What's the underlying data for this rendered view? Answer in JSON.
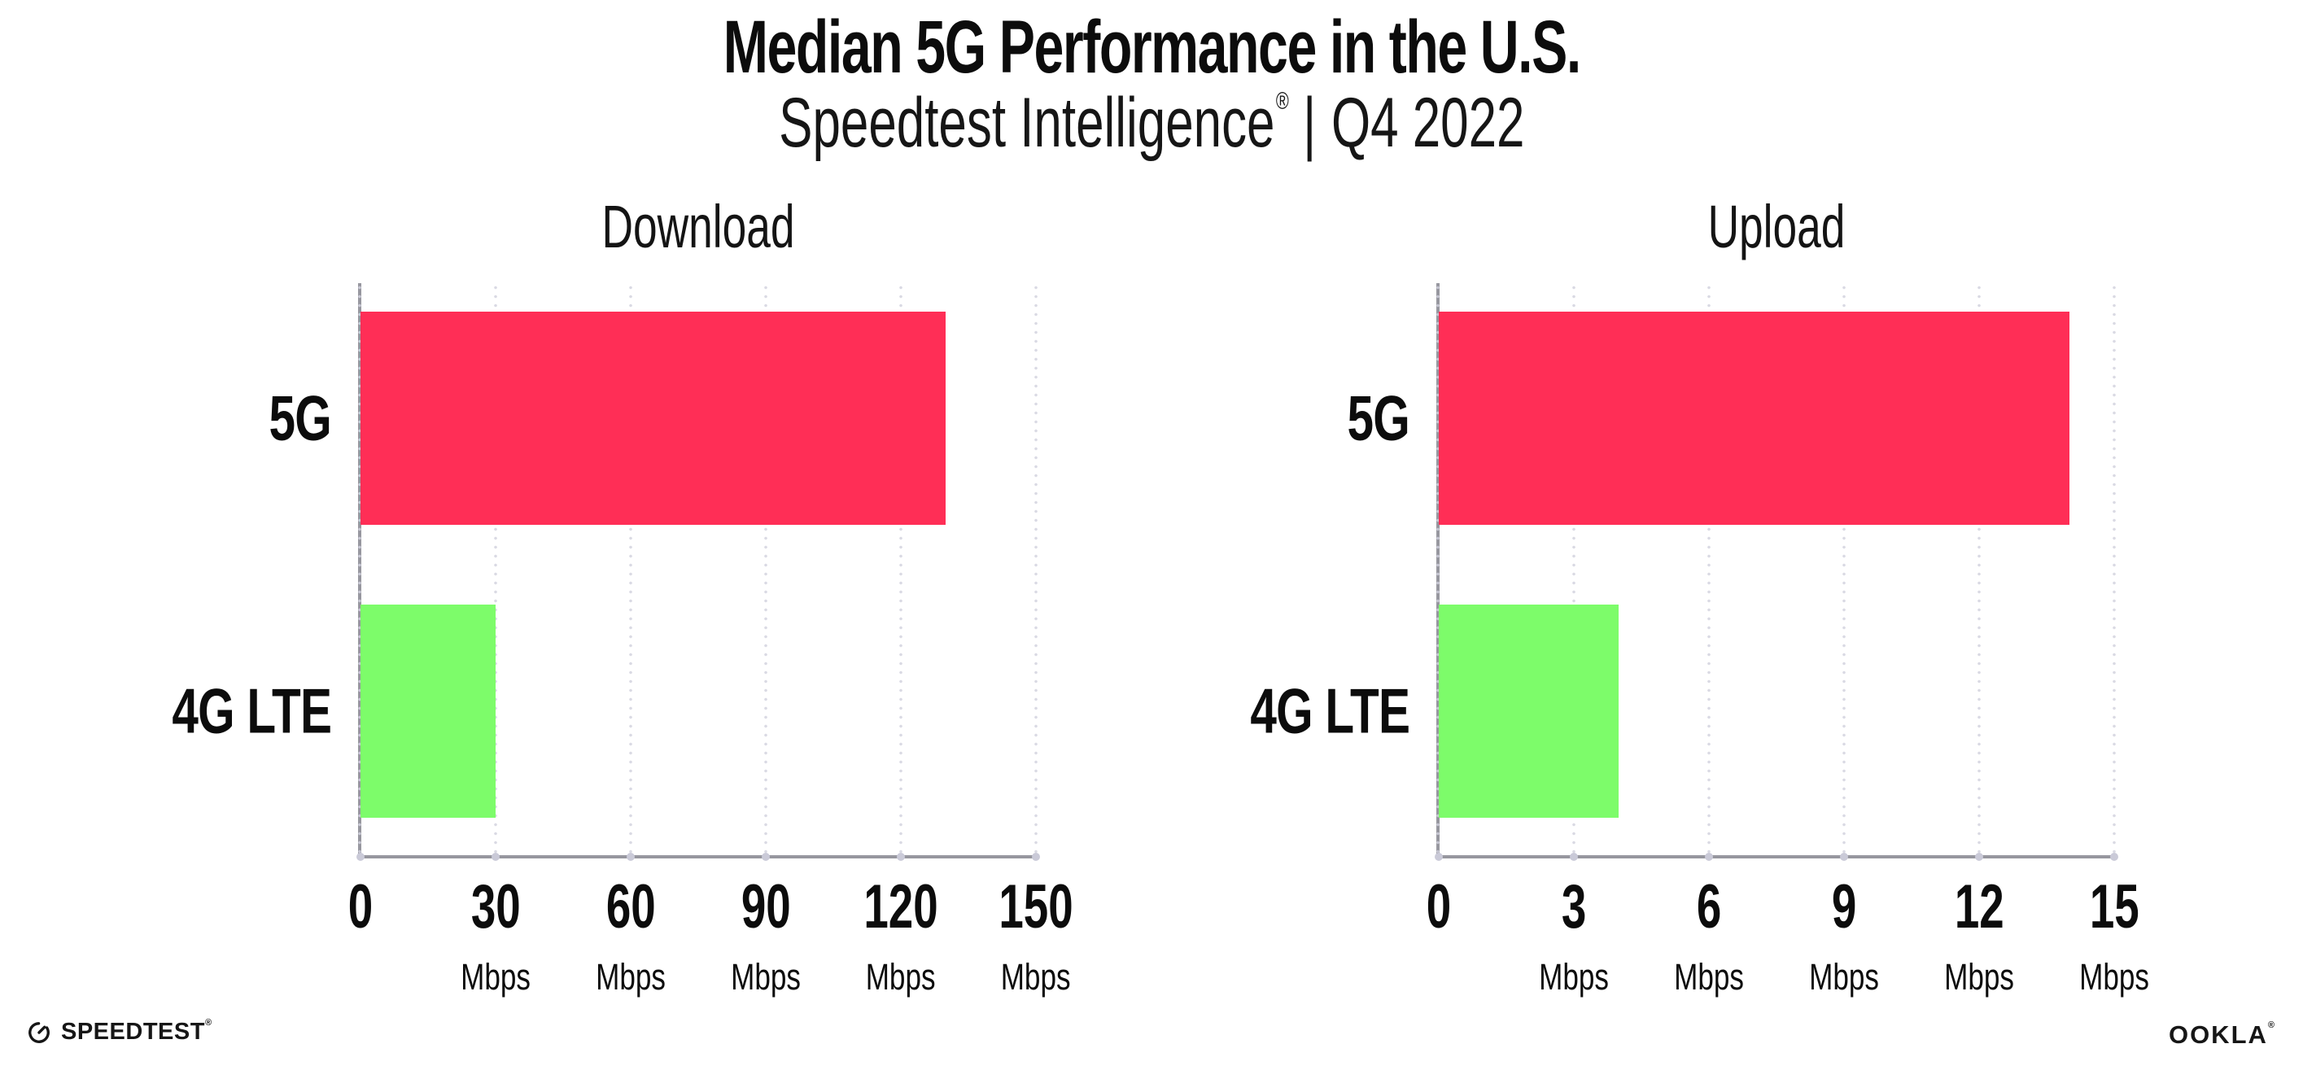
{
  "header": {
    "title": "Median 5G Performance in the U.S.",
    "subtitle": {
      "brand": "Speedtest Intelligence",
      "registered": "®",
      "separator": "|",
      "period": "Q4 2022"
    }
  },
  "chart_data": [
    {
      "type": "bar",
      "orientation": "horizontal",
      "title": "Download",
      "categories": [
        "5G",
        "4G LTE"
      ],
      "values": [
        130,
        30
      ],
      "unit": "Mbps",
      "xlim": [
        0,
        150
      ],
      "xticks": [
        0,
        30,
        60,
        90,
        120,
        150
      ],
      "bar_colors": [
        "#ff2e56",
        "#7dfc6a"
      ],
      "grid": "dotted vertical gridlines at each tick",
      "legend": "none",
      "value_labels_shown": false
    },
    {
      "type": "bar",
      "orientation": "horizontal",
      "title": "Upload",
      "categories": [
        "5G",
        "4G LTE"
      ],
      "values": [
        14,
        4
      ],
      "unit": "Mbps",
      "xlim": [
        0,
        15
      ],
      "xticks": [
        0,
        3,
        6,
        9,
        12,
        15
      ],
      "bar_colors": [
        "#ff2e56",
        "#7dfc6a"
      ],
      "grid": "dotted vertical gridlines at each tick",
      "legend": "none",
      "value_labels_shown": false
    }
  ],
  "footer": {
    "speedtest_wordmark": "SPEEDTEST",
    "speedtest_registered": "®",
    "ookla_wordmark": "OOKLA",
    "ookla_registered": "®"
  },
  "colors": {
    "bar_5g": "#ff2e56",
    "bar_4g_lte": "#7dfc6a",
    "axis_line": "#97979f",
    "grid_dot": "#dadae4",
    "text": "#0c0c0c"
  }
}
